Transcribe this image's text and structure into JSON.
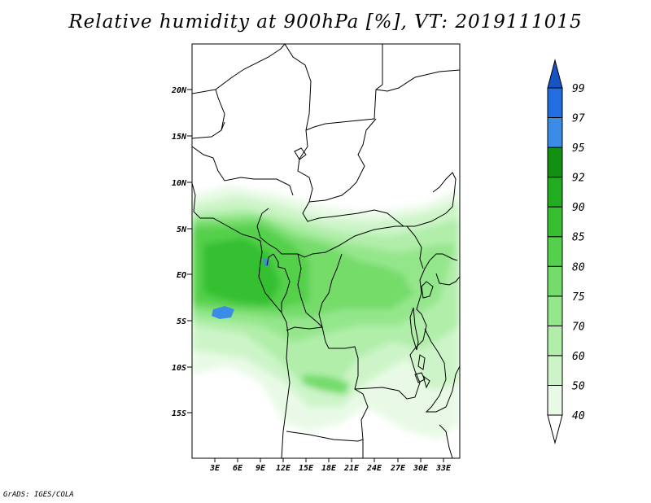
{
  "title": "Relative humidity at 900hPa [%], VT: 2019111015",
  "credit": "GrADS: IGES/COLA",
  "lat_labels": [
    "20N",
    "15N",
    "10N",
    "5N",
    "EQ",
    "5S",
    "10S",
    "15S"
  ],
  "lon_labels": [
    "3E",
    "6E",
    "9E",
    "12E",
    "15E",
    "18E",
    "21E",
    "24E",
    "27E",
    "30E",
    "33E"
  ],
  "colorbar": {
    "labels": [
      "40",
      "50",
      "60",
      "70",
      "75",
      "80",
      "85",
      "90",
      "92",
      "95",
      "97",
      "99"
    ],
    "colors": [
      "#ffffff",
      "#e8fae6",
      "#cdf4c8",
      "#b1eeaa",
      "#94e68b",
      "#74dc6b",
      "#54d04c",
      "#36c030",
      "#22ac20",
      "#129012",
      "#3a8ce6",
      "#226ee0",
      "#1654c6"
    ]
  }
}
